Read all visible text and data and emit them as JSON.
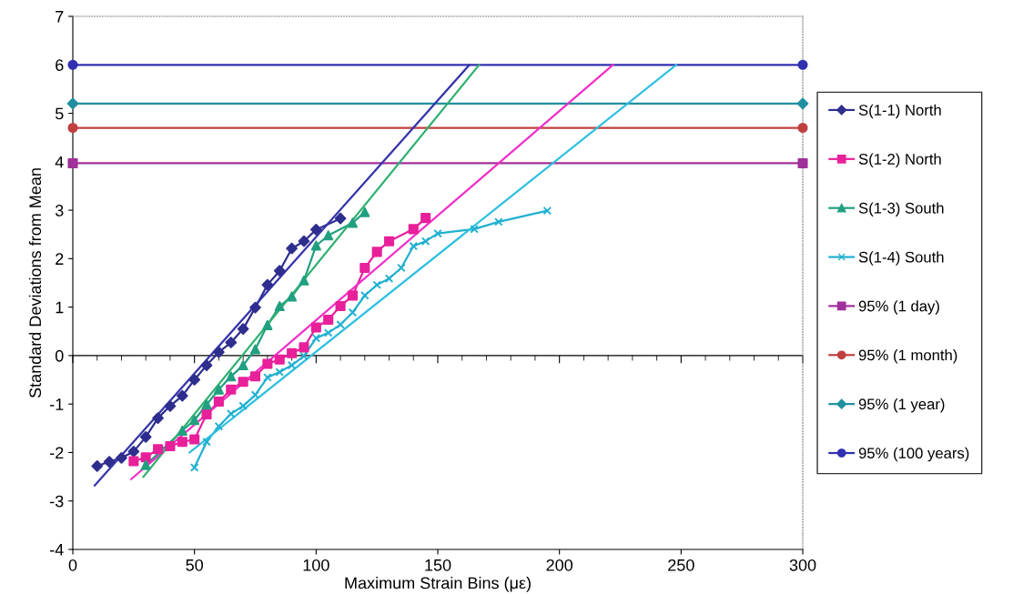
{
  "chart_data": {
    "type": "line",
    "xlabel": "Maximum Strain Bins (με)",
    "ylabel": "Standard Deviations from Mean",
    "xlim": [
      0,
      300
    ],
    "ylim": [
      -4,
      7
    ],
    "xticks": [
      0,
      50,
      100,
      150,
      200,
      250,
      300
    ],
    "yticks": [
      -4,
      -3,
      -2,
      -1,
      0,
      1,
      2,
      3,
      4,
      5,
      6,
      7
    ],
    "legend": "right",
    "line_style": "solid",
    "series": [
      {
        "name": "S(1-1) North",
        "color": "#2e2e8e",
        "marker": "diamond",
        "x": [
          10,
          15,
          20,
          25,
          30,
          35,
          40,
          45,
          50,
          55,
          60,
          65,
          70,
          75,
          80,
          85,
          90,
          95,
          100,
          110
        ],
        "values": [
          -2.28,
          -2.19,
          -2.11,
          -1.98,
          -1.68,
          -1.29,
          -1.04,
          -0.83,
          -0.5,
          -0.2,
          0.07,
          0.27,
          0.55,
          0.99,
          1.46,
          1.75,
          2.21,
          2.36,
          2.6,
          2.83
        ]
      },
      {
        "name": "S(1-2) North",
        "color": "#e8209a",
        "marker": "square",
        "x": [
          25,
          30,
          35,
          40,
          45,
          50,
          55,
          60,
          65,
          70,
          75,
          80,
          85,
          90,
          95,
          100,
          105,
          110,
          115,
          120,
          125,
          130,
          140,
          145
        ],
        "values": [
          -2.18,
          -2.1,
          -1.93,
          -1.87,
          -1.78,
          -1.73,
          -1.21,
          -0.95,
          -0.7,
          -0.54,
          -0.43,
          -0.17,
          -0.08,
          0.05,
          0.17,
          0.58,
          0.74,
          1.02,
          1.24,
          1.81,
          2.14,
          2.36,
          2.61,
          2.84
        ]
      },
      {
        "name": "S(1-3) South",
        "color": "#20a080",
        "marker": "triangle",
        "x": [
          30,
          45,
          50,
          55,
          60,
          65,
          70,
          75,
          80,
          85,
          90,
          95,
          100,
          105,
          115,
          120
        ],
        "values": [
          -2.26,
          -1.55,
          -1.33,
          -1.01,
          -0.7,
          -0.43,
          -0.2,
          0.13,
          0.63,
          1.02,
          1.22,
          1.55,
          2.27,
          2.48,
          2.74,
          2.96
        ]
      },
      {
        "name": "S(1-4) South",
        "color": "#20b0d0",
        "marker": "cross",
        "x": [
          50,
          55,
          60,
          65,
          70,
          75,
          80,
          85,
          90,
          95,
          100,
          105,
          110,
          115,
          120,
          125,
          130,
          135,
          140,
          145,
          150,
          165,
          175,
          195
        ],
        "values": [
          -2.31,
          -1.78,
          -1.46,
          -1.2,
          -1.04,
          -0.81,
          -0.45,
          -0.34,
          -0.2,
          -0.01,
          0.36,
          0.47,
          0.64,
          0.89,
          1.24,
          1.46,
          1.59,
          1.81,
          2.26,
          2.36,
          2.52,
          2.61,
          2.76,
          2.99
        ]
      },
      {
        "name": "95% (1 day)",
        "color": "#a0309a",
        "marker": "square",
        "x": [
          0,
          300
        ],
        "values": [
          3.97,
          3.97
        ]
      },
      {
        "name": "95% (1 month)",
        "color": "#c04040",
        "marker": "circle",
        "x": [
          0,
          300
        ],
        "values": [
          4.7,
          4.7
        ]
      },
      {
        "name": "95% (1 year)",
        "color": "#2090a0",
        "marker": "diamond",
        "x": [
          0,
          300
        ],
        "values": [
          5.2,
          5.2
        ]
      },
      {
        "name": "95% (100 years)",
        "color": "#3030b0",
        "marker": "circle",
        "x": [
          0,
          300
        ],
        "values": [
          6.0,
          6.0
        ]
      },
      {
        "color": "#3434aa",
        "marker": "none",
        "x": [
          9,
          163
        ],
        "values": [
          -2.68,
          6.0
        ]
      },
      {
        "color": "#f030c8",
        "marker": "none",
        "x": [
          24,
          222
        ],
        "values": [
          -2.55,
          6.0
        ]
      },
      {
        "color": "#30b070",
        "marker": "none",
        "x": [
          29,
          167
        ],
        "values": [
          -2.5,
          6.0
        ]
      },
      {
        "color": "#30c0e0",
        "marker": "none",
        "x": [
          48,
          248
        ],
        "values": [
          -2.0,
          6.0
        ]
      }
    ]
  }
}
